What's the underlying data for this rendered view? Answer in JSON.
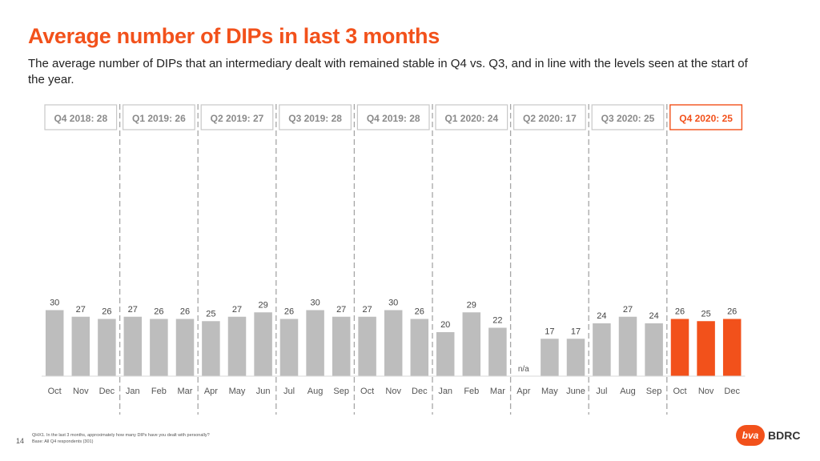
{
  "header": {
    "title": "Average number of DIPs in last 3 months",
    "subtitle": "The average number of DIPs that an intermediary dealt with remained stable in Q4 vs. Q3, and in line with the levels seen at the start of the year."
  },
  "colors": {
    "accent": "#f2511b",
    "bar_grey": "#bdbdbd",
    "box_border_grey": "#c8c8c8",
    "box_text_grey": "#8a8a8a",
    "divider": "#a6a6a6"
  },
  "chart_data": {
    "type": "bar",
    "title": "Average number of DIPs in last 3 months",
    "xlabel": "",
    "ylabel": "",
    "ylim": [
      0,
      30
    ],
    "quarters": [
      {
        "label": "Q4 2018: 28",
        "highlight": false,
        "months": [
          "Oct",
          "Nov",
          "Dec"
        ],
        "values": [
          30,
          27,
          26
        ]
      },
      {
        "label": "Q1 2019: 26",
        "highlight": false,
        "months": [
          "Jan",
          "Feb",
          "Mar"
        ],
        "values": [
          27,
          26,
          26
        ]
      },
      {
        "label": "Q2 2019: 27",
        "highlight": false,
        "months": [
          "Apr",
          "May",
          "Jun"
        ],
        "values": [
          25,
          27,
          29
        ]
      },
      {
        "label": "Q3 2019: 28",
        "highlight": false,
        "months": [
          "Jul",
          "Aug",
          "Sep"
        ],
        "values": [
          26,
          30,
          27
        ]
      },
      {
        "label": "Q4 2019: 28",
        "highlight": false,
        "months": [
          "Oct",
          "Nov",
          "Dec"
        ],
        "values": [
          27,
          30,
          26
        ]
      },
      {
        "label": "Q1 2020: 24",
        "highlight": false,
        "months": [
          "Jan",
          "Feb",
          "Mar"
        ],
        "values": [
          20,
          29,
          22
        ]
      },
      {
        "label": "Q2 2020: 17",
        "highlight": false,
        "months": [
          "Apr",
          "May",
          "June"
        ],
        "values": [
          null,
          17,
          17
        ]
      },
      {
        "label": "Q3 2020: 25",
        "highlight": false,
        "months": [
          "Jul",
          "Aug",
          "Sep"
        ],
        "values": [
          24,
          27,
          24
        ]
      },
      {
        "label": "Q4 2020: 25",
        "highlight": true,
        "months": [
          "Oct",
          "Nov",
          "Dec"
        ],
        "values": [
          26,
          25,
          26
        ]
      }
    ],
    "missing_label": "n/a"
  },
  "footer": {
    "question": "QHX1. In the last 3 months, approximately how many DIPs have you dealt with personally?",
    "base": "Base: All Q4 respondents (301)",
    "page_number": "14",
    "logo_badge": "bva",
    "logo_text": "BDRC"
  }
}
